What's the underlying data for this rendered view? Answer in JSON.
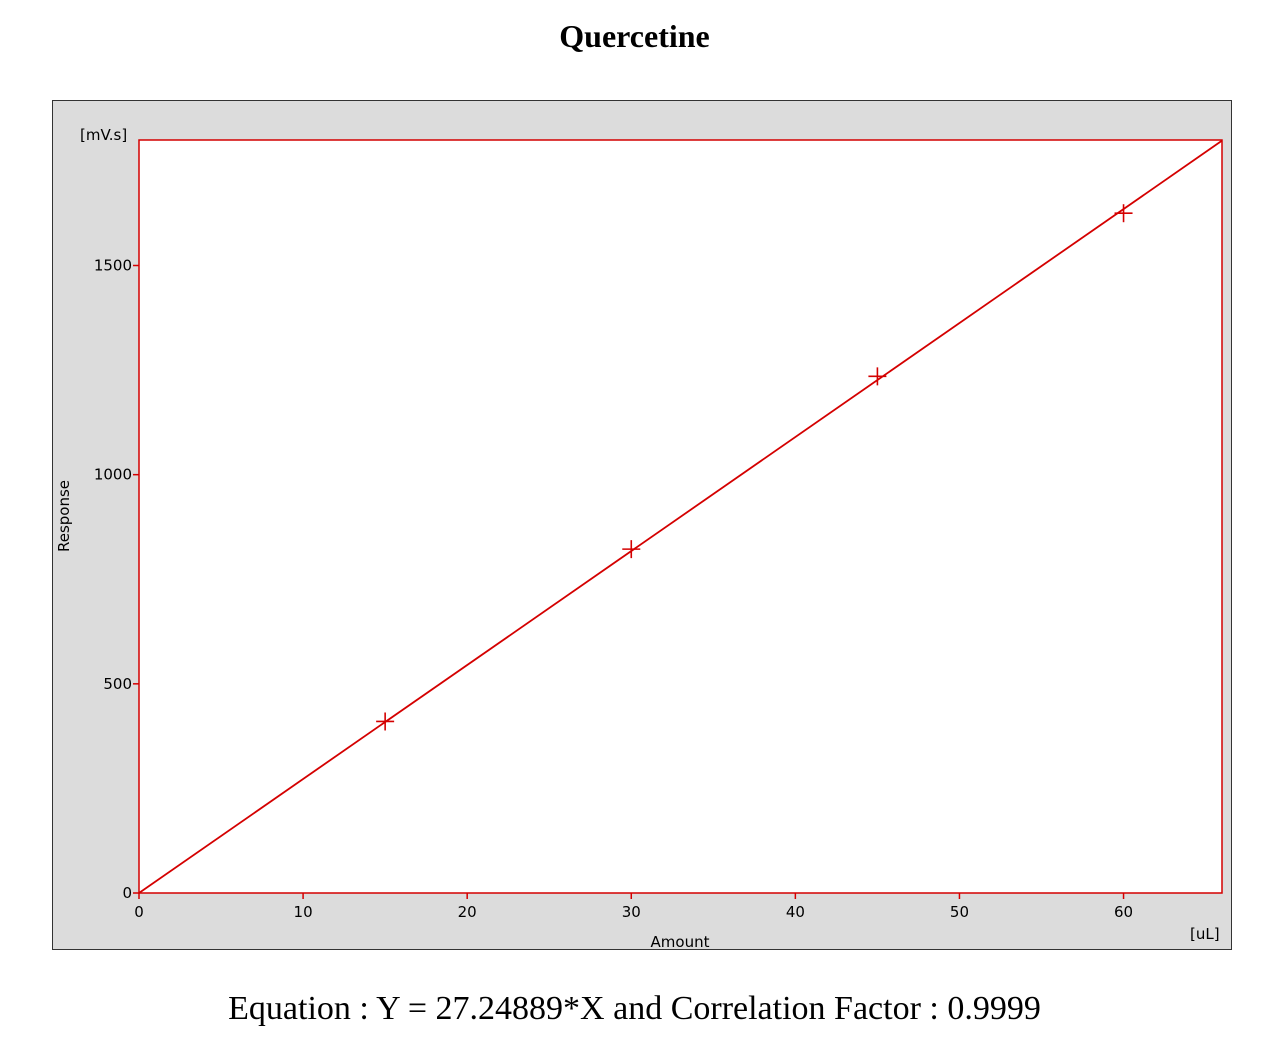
{
  "title": "Quercetine",
  "equation_text": "Equation : Y = 27.24889*X and Correlation Factor : 0.9999",
  "chart_data": {
    "type": "scatter",
    "title": "Quercetine",
    "xlabel": "Amount",
    "ylabel": "Response",
    "x_unit": "[uL]",
    "y_unit": "[mV.s]",
    "xlim": [
      0,
      66
    ],
    "ylim": [
      0,
      1800
    ],
    "x_ticks": [
      0,
      10,
      20,
      30,
      40,
      50,
      60
    ],
    "y_ticks": [
      0,
      500,
      1000,
      1500
    ],
    "points": [
      {
        "x": 15,
        "y": 410
      },
      {
        "x": 30,
        "y": 822
      },
      {
        "x": 45,
        "y": 1235
      },
      {
        "x": 60,
        "y": 1625
      }
    ],
    "fit": {
      "slope": 27.24889,
      "intercept": 0
    },
    "colors": {
      "line": "#d40000",
      "marker": "#d40000",
      "plot_border": "#d40000",
      "frame_bg": "#dcdcdc"
    },
    "grid": false
  }
}
